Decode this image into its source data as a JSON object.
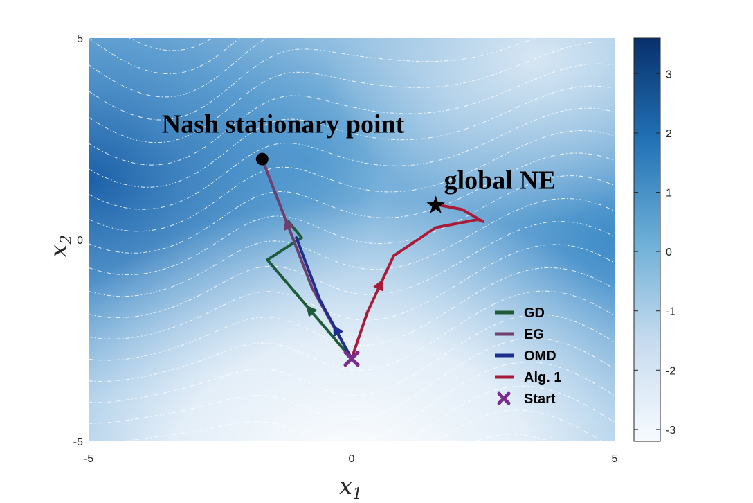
{
  "chart_data": {
    "type": "contour",
    "title": "",
    "xlabel": "x",
    "xlabel_sub": "1",
    "ylabel": "x",
    "ylabel_sub": "2",
    "xlim": [
      -5,
      5
    ],
    "ylim": [
      -5,
      5
    ],
    "xticks": [
      "-5",
      "0",
      "5"
    ],
    "yticks": [
      "5",
      "0",
      "-5"
    ],
    "colorbar": {
      "range": [
        -3.2,
        3.6
      ],
      "ticks": [
        "3",
        "2",
        "1",
        "0",
        "-1",
        "-2",
        "-3"
      ],
      "tick_values": [
        3,
        2,
        1,
        0,
        -1,
        -2,
        -3
      ],
      "colors": [
        "#f7fbff",
        "#c6dbef",
        "#6baed6",
        "#2171b5",
        "#08306b"
      ]
    },
    "contour_lines": {
      "color": "#ffffff",
      "style": "dash-dot"
    },
    "legend_position": "lower-right",
    "series": [
      {
        "name": "GD",
        "color": "#1f5b3a",
        "x": [
          0,
          -1.6,
          -0.95,
          -1.2
        ],
        "y": [
          -2.95,
          -0.5,
          0.05,
          0.45
        ],
        "arrow_at": 1
      },
      {
        "name": "EG",
        "color": "#6e3f6f",
        "x": [
          0,
          -0.75,
          -1.7
        ],
        "y": [
          -2.95,
          -1.2,
          2.0
        ],
        "arrow_at": 2
      },
      {
        "name": "OMD",
        "color": "#1d2e8f",
        "x": [
          0,
          -0.6,
          -1.05
        ],
        "y": [
          -2.95,
          -1.5,
          0.05
        ],
        "arrow_at": 1
      },
      {
        "name": "Alg. 1",
        "color": "#a81c3a",
        "x": [
          0,
          0.3,
          0.8,
          1.6,
          2.4,
          2.5,
          2.1,
          1.7
        ],
        "y": [
          -2.95,
          -1.8,
          -0.4,
          0.3,
          0.5,
          0.45,
          0.75,
          0.85
        ],
        "arrow_at": 2
      }
    ],
    "start": {
      "name": "Start",
      "x": 0,
      "y": -2.95,
      "color": "#7b2d8e"
    },
    "markers": [
      {
        "label": "Nash stationary point",
        "x": -1.7,
        "y": 2.0,
        "shape": "circle"
      },
      {
        "label": "global NE",
        "x": 1.6,
        "y": 0.85,
        "shape": "star"
      }
    ]
  }
}
